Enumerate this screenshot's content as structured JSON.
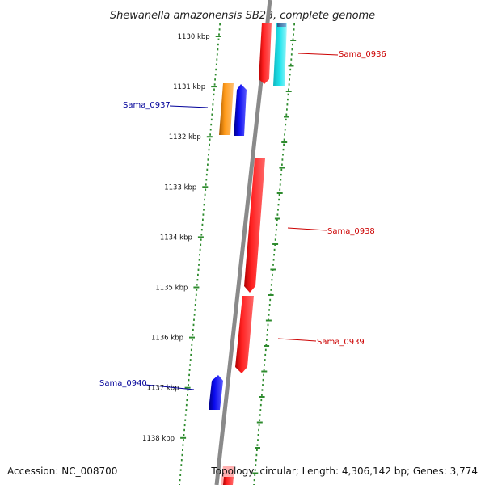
{
  "title": "Shewanella amazonensis SB2B, complete genome",
  "footer": {
    "accession": "Accession: NC_008700",
    "topology": "Topology: circular; Length: 4,306,142 bp; Genes: 3,774"
  },
  "ticks": [
    "1130 kbp",
    "1131 kbp",
    "1132 kbp",
    "1133 kbp",
    "1134 kbp",
    "1135 kbp",
    "1136 kbp",
    "1137 kbp",
    "1138 kbp"
  ],
  "genes": [
    {
      "name": "Sama_0936",
      "color": "#cc0000"
    },
    {
      "name": "Sama_0937",
      "color": "#000099"
    },
    {
      "name": "Sama_0938",
      "color": "#cc0000"
    },
    {
      "name": "Sama_0939",
      "color": "#cc0000"
    },
    {
      "name": "Sama_0940",
      "color": "#000099"
    }
  ],
  "colors": {
    "backbone": "#8a8a8a",
    "tick_track": "#2e8b2e",
    "gene_red": "#ff1a1a",
    "gene_blue": "#0a0aee",
    "gene_orange": "#ff9a1a",
    "gene_cyan": "#22e5ee",
    "gene_steel": "#4a7fb0",
    "gene_pink": "#ffb0b0"
  }
}
